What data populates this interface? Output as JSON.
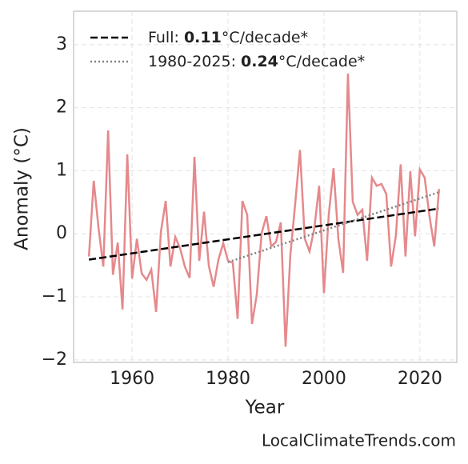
{
  "chart_data": {
    "type": "line",
    "xlabel": "Year",
    "ylabel": "Anomaly (°C)",
    "footer": "LocalClimateTrends.com",
    "xlim": [
      1947.8,
      2027.7
    ],
    "xticks": [
      1960,
      1980,
      2000,
      2020
    ],
    "ylim": [
      -2.04,
      3.53
    ],
    "yticks": [
      {
        "value": -2,
        "label": "−2"
      },
      {
        "value": -1,
        "label": "−1"
      },
      0,
      1,
      2,
      3
    ],
    "grid": true,
    "legend": "upper-left",
    "series": [
      {
        "color": "#e27c7f",
        "style": "solid",
        "x": [
          1951,
          1952,
          1953,
          1954,
          1955,
          1956,
          1957,
          1958,
          1959,
          1960,
          1961,
          1962,
          1963,
          1964,
          1965,
          1966,
          1967,
          1968,
          1969,
          1970,
          1971,
          1972,
          1973,
          1974,
          1975,
          1976,
          1977,
          1978,
          1979,
          1980,
          1981,
          1982,
          1983,
          1984,
          1985,
          1986,
          1987,
          1988,
          1989,
          1990,
          1991,
          1992,
          1993,
          1994,
          1995,
          1996,
          1997,
          1998,
          1999,
          2000,
          2001,
          2002,
          2003,
          2004,
          2005,
          2006,
          2007,
          2008,
          2009,
          2010,
          2011,
          2012,
          2013,
          2014,
          2015,
          2016,
          2017,
          2018,
          2019,
          2020,
          2021,
          2022,
          2023,
          2024
        ],
        "values": [
          -0.36,
          0.84,
          0.09,
          -0.52,
          1.64,
          -0.65,
          -0.14,
          -1.2,
          1.26,
          -0.71,
          -0.08,
          -0.63,
          -0.73,
          -0.57,
          -1.24,
          0.03,
          0.52,
          -0.52,
          -0.05,
          -0.23,
          -0.52,
          -0.7,
          1.22,
          -0.43,
          0.35,
          -0.51,
          -0.84,
          -0.41,
          -0.15,
          -0.43,
          -0.46,
          -1.35,
          0.52,
          0.3,
          -1.43,
          -0.96,
          0.01,
          0.28,
          -0.2,
          -0.13,
          0.18,
          -1.79,
          -0.33,
          0.47,
          1.33,
          -0.08,
          -0.28,
          0.09,
          0.76,
          -0.94,
          0.3,
          1.04,
          -0.08,
          -0.62,
          2.54,
          0.51,
          0.3,
          0.38,
          -0.43,
          0.89,
          0.76,
          0.79,
          0.63,
          -0.52,
          -0.03,
          1.1,
          -0.36,
          0.99,
          -0.04,
          1.02,
          0.89,
          0.28,
          -0.2,
          0.71
        ]
      },
      {
        "name": "Full: 0.11°C/decade*",
        "color": "#000000",
        "style": "dashed",
        "x": [
          1951,
          2024
        ],
        "values": [
          -0.41,
          0.4
        ]
      },
      {
        "name": "1980-2025: 0.24°C/decade*",
        "color": "#808080",
        "style": "dotted",
        "x": [
          1980,
          2024
        ],
        "values": [
          -0.45,
          0.66
        ]
      }
    ]
  }
}
